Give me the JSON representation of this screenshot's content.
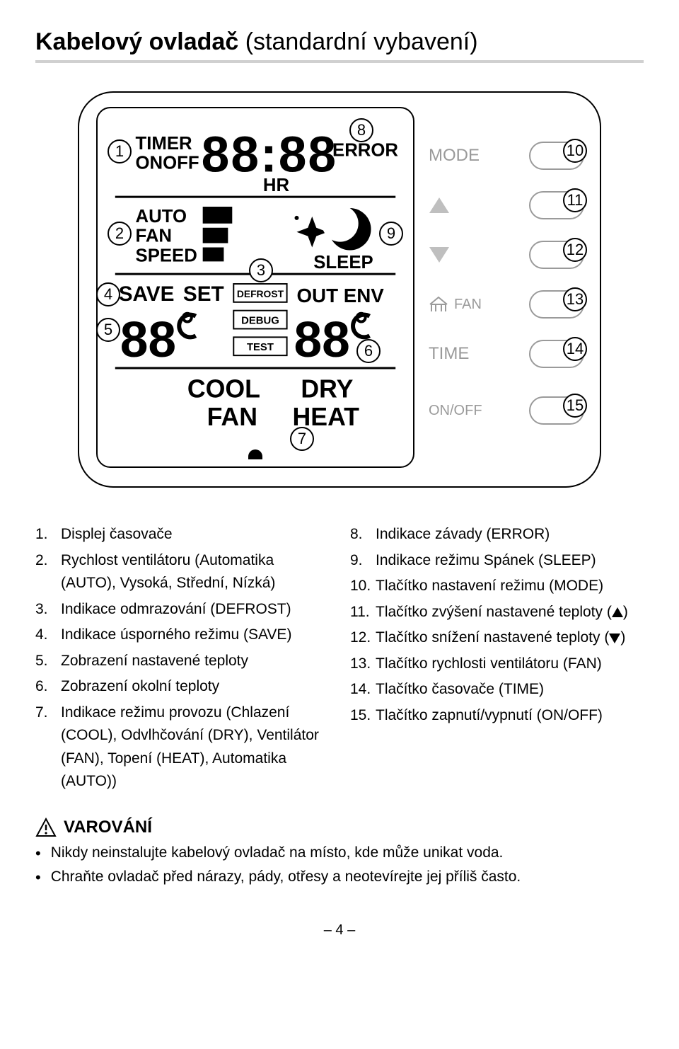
{
  "title_bold": "Kabelový ovladač",
  "title_rest": " (standardní vybavení)",
  "lcd": {
    "timer": "TIMER",
    "onoff": "ONOFF",
    "hr": "HR",
    "error": "ERROR",
    "auto": "AUTO",
    "fan": "FAN",
    "speed": "SPEED",
    "sleep": "SLEEP",
    "save": "SAVE",
    "set": "SET",
    "defrost": "DEFROST",
    "debug": "DEBUG",
    "test": "TEST",
    "outenv": "OUT ENV",
    "cool": "COOL",
    "dry": "DRY",
    "fan2": "FAN",
    "heat": "HEAT"
  },
  "side": {
    "mode": "MODE",
    "fan": "FAN",
    "time": "TIME",
    "onoff": "ON/OFF"
  },
  "callouts": {
    "c1": "1",
    "c2": "2",
    "c3": "3",
    "c4": "4",
    "c5": "5",
    "c6": "6",
    "c7": "7",
    "c8": "8",
    "c9": "9",
    "c10": "10",
    "c11": "11",
    "c12": "12",
    "c13": "13",
    "c14": "14",
    "c15": "15"
  },
  "left_list": [
    {
      "n": "1.",
      "t": "Displej časovače"
    },
    {
      "n": "2.",
      "t": "Rychlost ventilátoru (Automatika (AUTO), Vysoká, Střední, Nízká)"
    },
    {
      "n": "3.",
      "t": "Indikace odmrazování (DEFROST)"
    },
    {
      "n": "4.",
      "t": "Indikace úsporného režimu (SAVE)"
    },
    {
      "n": "5.",
      "t": "Zobrazení nastavené teploty"
    },
    {
      "n": "6.",
      "t": "Zobrazení okolní teploty"
    },
    {
      "n": "7.",
      "t": "Indikace režimu provozu (Chlazení (COOL), Odvlhčování (DRY), Ventilátor (FAN), Topení (HEAT), Automatika (AUTO))"
    }
  ],
  "right_list": [
    {
      "n": "8.",
      "t": "Indikace závady (ERROR)"
    },
    {
      "n": "9.",
      "t": "Indikace režimu Spánek (SLEEP)"
    },
    {
      "n": "10.",
      "t": "Tlačítko nastavení režimu (MODE)"
    },
    {
      "n": "11.",
      "t_pre": "Tlačítko zvýšení nastavené teploty (",
      "tri": "up",
      "t_post": ")"
    },
    {
      "n": "12.",
      "t_pre": "Tlačítko snížení nastavené teploty (",
      "tri": "down",
      "t_post": ")"
    },
    {
      "n": "13.",
      "t": "Tlačítko rychlosti ventilátoru (FAN)"
    },
    {
      "n": "14.",
      "t": "Tlačítko časovače (TIME)"
    },
    {
      "n": "15.",
      "t": "Tlačítko zapnutí/vypnutí (ON/OFF)"
    }
  ],
  "warning_title": "VAROVÁNÍ",
  "warnings": [
    "Nikdy neinstalujte kabelový ovladač na místo, kde může unikat voda.",
    "Chraňte ovladač před nárazy, pády, otřesy a neotevírejte jej příliš často."
  ],
  "page_number": "– 4 –"
}
